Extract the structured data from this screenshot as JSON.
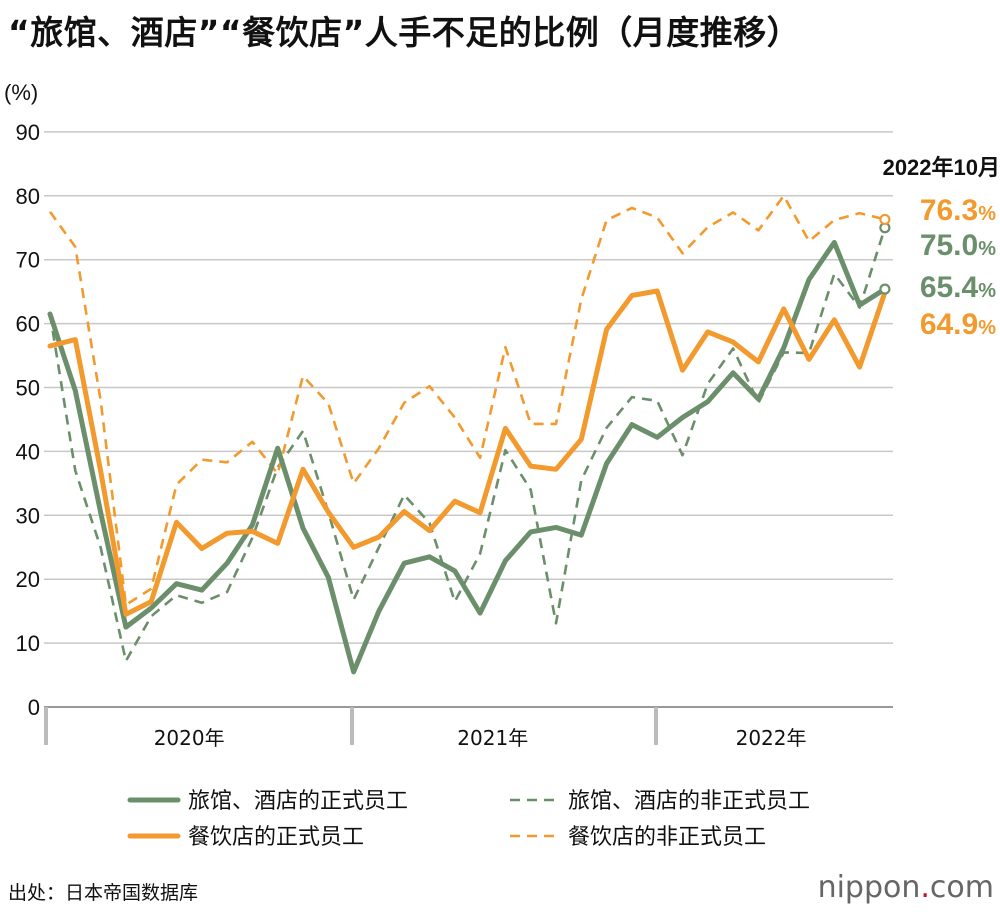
{
  "title": "“旅馆、酒店”“餐饮店”人手不足的比例（月度推移）",
  "source": "出处：日本帝国数据库",
  "brand": {
    "name": "nippon",
    "dot": ".",
    "tld": "com"
  },
  "colors": {
    "green": "#6b8e6b",
    "orange": "#f29a2e",
    "grid": "#c8c8c8",
    "axis": "#999999"
  },
  "chart_data": {
    "type": "line",
    "ylabel": "(%)",
    "ylim": [
      0,
      90
    ],
    "yticks": [
      0,
      10,
      20,
      30,
      40,
      50,
      60,
      70,
      80,
      90
    ],
    "x": [
      "2020-01",
      "2020-02",
      "2020-03",
      "2020-04",
      "2020-05",
      "2020-06",
      "2020-07",
      "2020-08",
      "2020-09",
      "2020-10",
      "2020-11",
      "2020-12",
      "2021-01",
      "2021-02",
      "2021-03",
      "2021-04",
      "2021-05",
      "2021-06",
      "2021-07",
      "2021-08",
      "2021-09",
      "2021-10",
      "2021-11",
      "2021-12",
      "2022-01",
      "2022-02",
      "2022-03",
      "2022-04",
      "2022-05",
      "2022-06",
      "2022-07",
      "2022-08",
      "2022-09",
      "2022-10"
    ],
    "year_labels": [
      {
        "label": "2020年",
        "start": 0,
        "end": 11
      },
      {
        "label": "2021年",
        "start": 12,
        "end": 23
      },
      {
        "label": "2022年",
        "start": 24,
        "end": 33
      }
    ],
    "end_note": "2022年10月",
    "series": [
      {
        "name": "旅馆、酒店的正式员工",
        "color": "#6b8e6b",
        "dash": false,
        "end_label": "65.4",
        "unit": "%",
        "values": [
          61.5,
          49.5,
          30.5,
          12.5,
          15.5,
          19.3,
          18.3,
          22.5,
          28.5,
          40.5,
          28.0,
          20.3,
          5.5,
          15.0,
          22.5,
          23.5,
          21.3,
          14.7,
          22.9,
          27.4,
          28.1,
          26.9,
          38.1,
          44.2,
          42.2,
          45.3,
          47.8,
          52.3,
          48.2,
          56.2,
          66.9,
          72.7,
          62.9,
          65.4
        ]
      },
      {
        "name": "旅馆、酒店的非正式员工",
        "color": "#6b8e6b",
        "dash": true,
        "end_label": "75.0",
        "unit": "%",
        "values": [
          61.5,
          37.0,
          25.0,
          7.2,
          14.2,
          17.5,
          16.3,
          18.0,
          26.5,
          37.5,
          43.2,
          30.5,
          16.8,
          25.0,
          33.2,
          28.8,
          16.5,
          24.0,
          40.2,
          34.0,
          13.1,
          35.5,
          43.7,
          48.5,
          47.9,
          39.4,
          50.6,
          56.1,
          47.6,
          55.5,
          55.4,
          67.8,
          62.5,
          75.0
        ]
      },
      {
        "name": "餐饮店的正式员工",
        "color": "#f29a2e",
        "dash": false,
        "end_label": "64.9",
        "unit": "%",
        "values": [
          56.5,
          57.5,
          37.0,
          14.5,
          16.5,
          28.9,
          24.8,
          27.2,
          27.5,
          25.6,
          37.2,
          30.5,
          25.0,
          26.6,
          30.6,
          27.6,
          32.2,
          30.4,
          43.6,
          37.7,
          37.2,
          41.9,
          59.1,
          64.4,
          65.1,
          52.7,
          58.7,
          57.1,
          54.0,
          62.3,
          54.4,
          60.6,
          53.2,
          64.9
        ]
      },
      {
        "name": "餐饮店的非正式员工",
        "color": "#f29a2e",
        "dash": true,
        "end_label": "76.3",
        "unit": "%",
        "values": [
          77.5,
          72.0,
          48.0,
          16.0,
          18.5,
          34.8,
          38.7,
          38.3,
          41.5,
          36.5,
          51.8,
          47.5,
          35.0,
          40.5,
          47.6,
          50.2,
          45.3,
          39.0,
          56.3,
          44.3,
          44.3,
          63.8,
          76.2,
          78.1,
          76.6,
          71.0,
          75.1,
          77.4,
          74.6,
          80.0,
          72.9,
          76.2,
          77.3,
          76.3
        ]
      }
    ],
    "legend": {
      "placement": "bottom",
      "columns": 2
    }
  }
}
